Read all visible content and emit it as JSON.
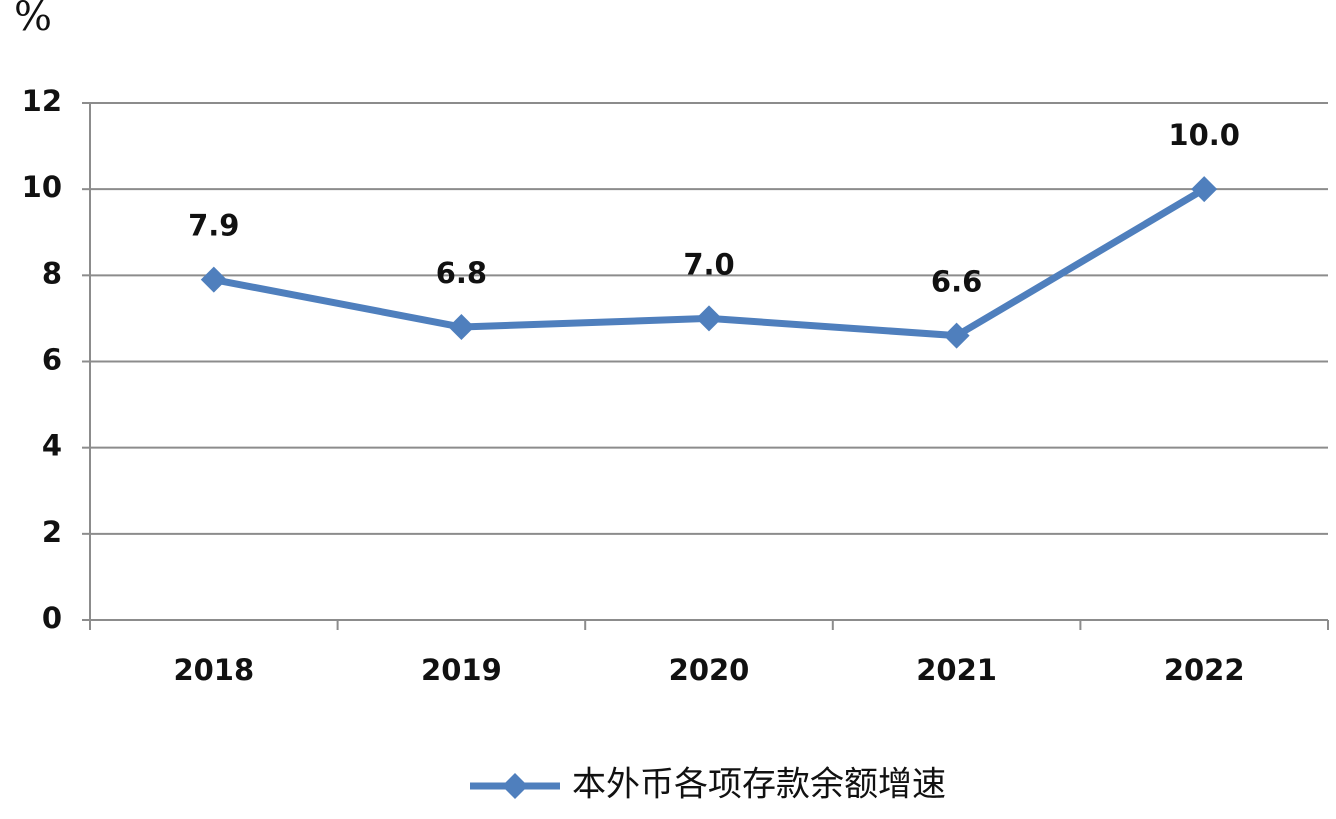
{
  "chart_data": {
    "type": "line",
    "ylabel": "%",
    "categories": [
      "2018",
      "2019",
      "2020",
      "2021",
      "2022"
    ],
    "series": [
      {
        "name": "本外币各项存款余额增速",
        "color": "#4f7fbd",
        "values": [
          7.9,
          6.8,
          7.0,
          6.6,
          10.0
        ],
        "value_labels": [
          "7.9",
          "6.8",
          "7.0",
          "6.6",
          "10.0"
        ]
      }
    ],
    "ylim": [
      0,
      12
    ],
    "yticks": [
      0,
      2,
      4,
      6,
      8,
      10,
      12
    ],
    "grid": true
  }
}
